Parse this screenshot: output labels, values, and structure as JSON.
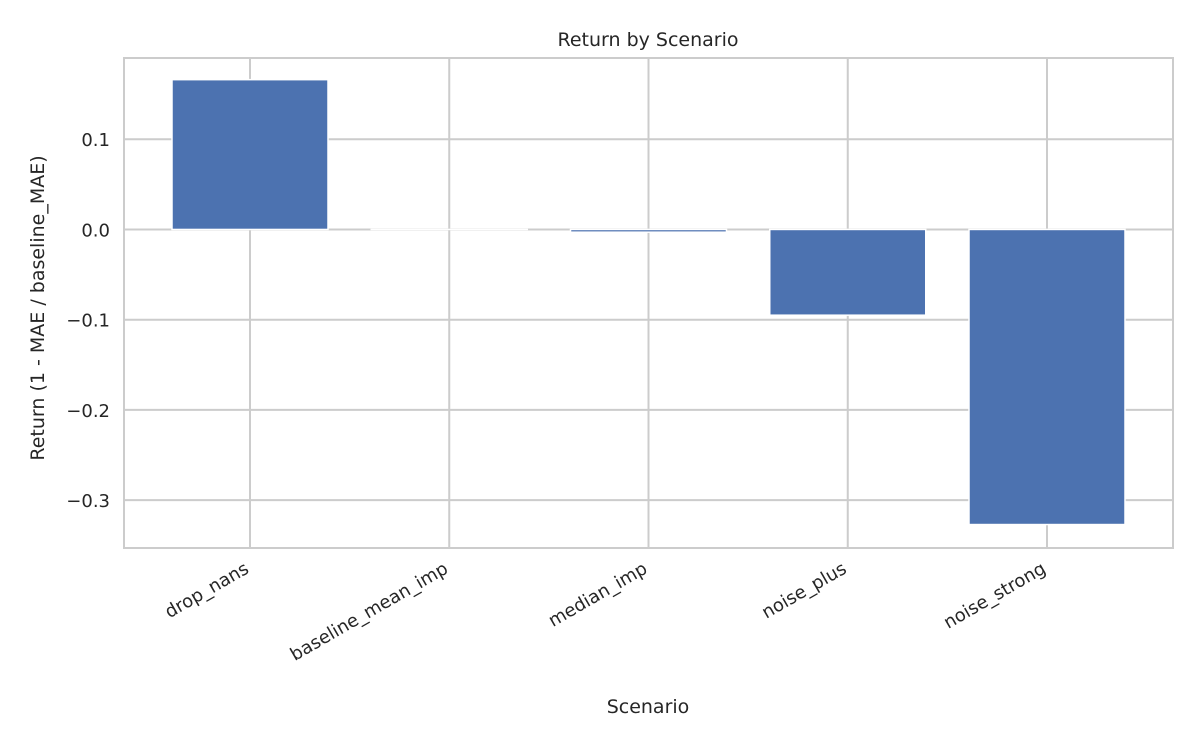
{
  "chart_data": {
    "type": "bar",
    "title": "Return by Scenario",
    "xlabel": "Scenario",
    "ylabel": "Return (1 - MAE / baseline_MAE)",
    "categories": [
      "drop_nans",
      "baseline_mean_imp",
      "median_imp",
      "noise_plus",
      "noise_strong"
    ],
    "values": [
      0.166,
      0.0,
      -0.003,
      -0.095,
      -0.327
    ],
    "ylim": [
      -0.353,
      0.19
    ],
    "yticks": [
      0.1,
      0.0,
      -0.1,
      -0.2,
      -0.3
    ],
    "ytick_labels": [
      "0.1",
      "0.0",
      "−0.1",
      "−0.2",
      "−0.3"
    ],
    "grid": true,
    "bar_color": "#4c72b0",
    "grid_color": "#cccccc",
    "legend": "none"
  }
}
